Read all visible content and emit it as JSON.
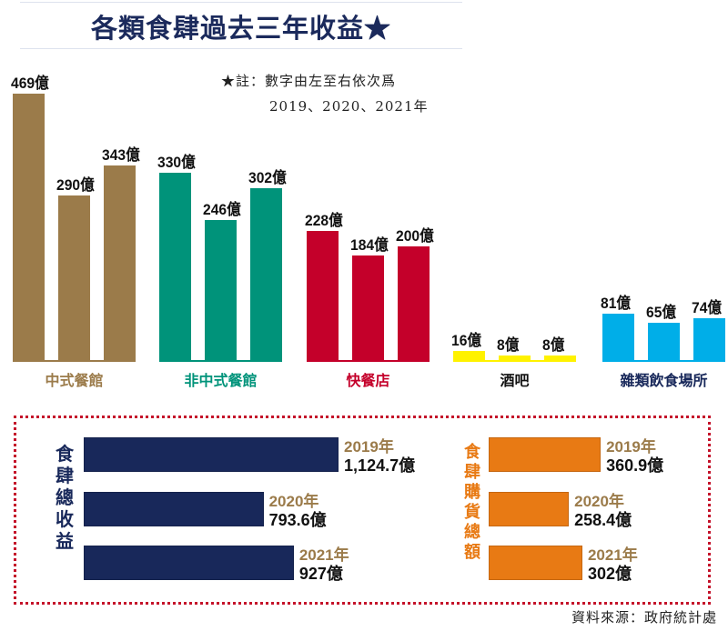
{
  "chart_data": [
    {
      "type": "bar",
      "title": "各類食肆過去三年收益★",
      "note_line1": "★註：數字由左至右依次爲",
      "note_line2": "2019、2020、2021年",
      "unit": "億",
      "categories": [
        "中式餐館",
        "非中式餐館",
        "快餐店",
        "酒吧",
        "雜類飲食場所"
      ],
      "years": [
        "2019",
        "2020",
        "2021"
      ],
      "groups": [
        {
          "name": "中式餐館",
          "color": "#9b7b4a",
          "values": [
            469,
            290,
            343
          ]
        },
        {
          "name": "非中式餐館",
          "color": "#00937a",
          "values": [
            330,
            246,
            302
          ]
        },
        {
          "name": "快餐店",
          "color": "#c4002a",
          "values": [
            228,
            184,
            200
          ]
        },
        {
          "name": "酒吧",
          "color": "#fff200",
          "values": [
            16,
            8,
            8
          ]
        },
        {
          "name": "雜類飲食場所",
          "color": "#00aee8",
          "values": [
            81,
            65,
            74
          ]
        }
      ]
    },
    {
      "type": "bar",
      "orientation": "horizontal",
      "title": "食肆總收益",
      "color": "#18285a",
      "categories": [
        "2019年",
        "2020年",
        "2021年"
      ],
      "values": [
        1124.7,
        793.6,
        927
      ],
      "labels": [
        "1,124.7億",
        "793.6億",
        "927億"
      ]
    },
    {
      "type": "bar",
      "orientation": "horizontal",
      "title": "食肆購貨總額",
      "color": "#e87a14",
      "categories": [
        "2019年",
        "2020年",
        "2021年"
      ],
      "values": [
        360.9,
        258.4,
        302
      ],
      "labels": [
        "360.9億",
        "258.4億",
        "302億"
      ]
    }
  ],
  "source": "資料來源：政府統計處"
}
